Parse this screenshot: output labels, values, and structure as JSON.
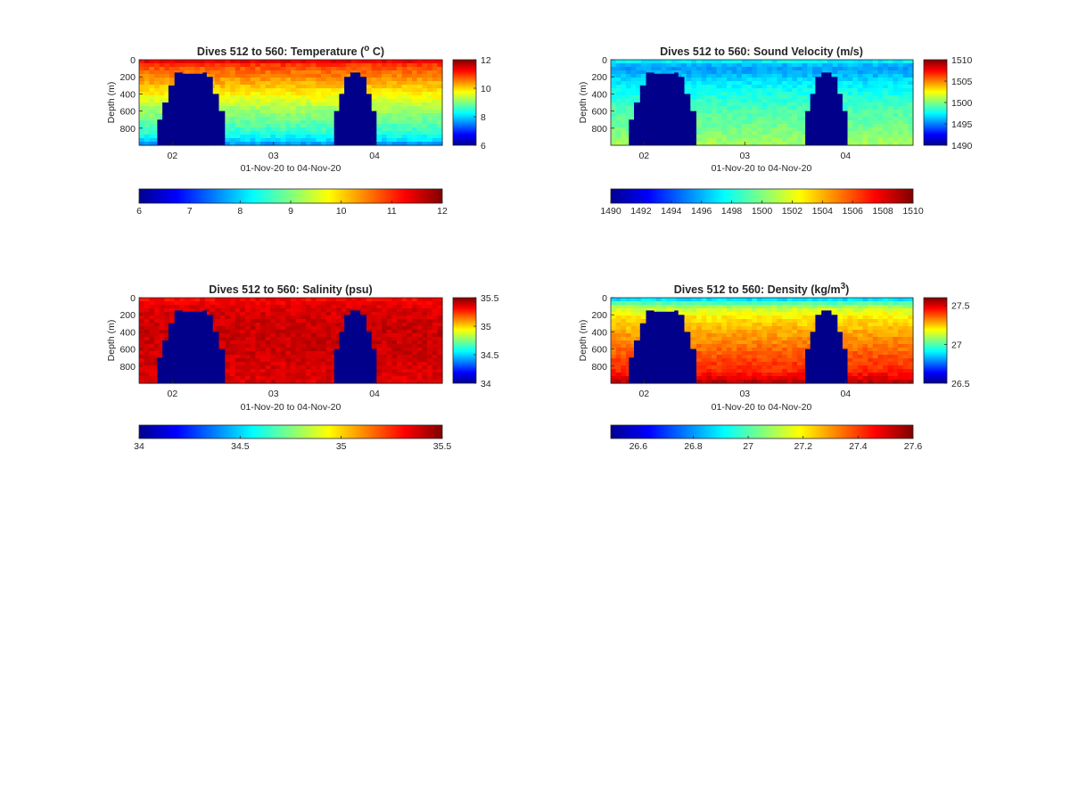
{
  "figure": {
    "colormap": "jet",
    "colormap_stops": [
      "#00008f",
      "#0000ff",
      "#0080ff",
      "#00ffff",
      "#80ff80",
      "#ffff00",
      "#ff8000",
      "#ff0000",
      "#800000"
    ],
    "background_fill": "#00008b"
  },
  "chart_data": [
    {
      "type": "heatmap",
      "title": "Dives 512 to 560: Temperature (",
      "title_sup": "o",
      "title_end": " C)",
      "xlabel": "01-Nov-20 to 04-Nov-20",
      "ylabel": "Depth (m)",
      "x_ticks": [
        "02",
        "03",
        "04"
      ],
      "x_tick_days": [
        2,
        3,
        4
      ],
      "xlim_days": [
        1.67,
        4.67
      ],
      "y_ticks": [
        "0",
        "200",
        "400",
        "600",
        "800"
      ],
      "y_tick_values": [
        0,
        200,
        400,
        600,
        800
      ],
      "ylim": [
        0,
        1000
      ],
      "y_reversed": true,
      "clim": [
        6,
        12
      ],
      "colorbar_ticks": [
        "6",
        "8",
        "10",
        "12"
      ],
      "colorbar_tick_values": [
        6,
        8,
        10,
        12
      ],
      "h_colorbar_ticks": [
        "6",
        "7",
        "8",
        "9",
        "10",
        "11",
        "12"
      ],
      "h_colorbar_tick_values": [
        6,
        7,
        8,
        9,
        10,
        11,
        12
      ],
      "profile_depths": [
        0,
        30,
        80,
        150,
        250,
        400,
        550,
        700,
        850,
        950,
        1000
      ],
      "profile_values": [
        11.6,
        11.2,
        10.8,
        10.6,
        10.3,
        9.8,
        9.3,
        8.9,
        8.5,
        8.0,
        7.5
      ]
    },
    {
      "type": "heatmap",
      "title": "Dives 512 to 560: Sound Velocity (m/s)",
      "xlabel": "01-Nov-20 to 04-Nov-20",
      "ylabel": "Depth (m)",
      "x_ticks": [
        "02",
        "03",
        "04"
      ],
      "x_tick_days": [
        2,
        3,
        4
      ],
      "xlim_days": [
        1.67,
        4.67
      ],
      "y_ticks": [
        "0",
        "200",
        "400",
        "600",
        "800"
      ],
      "y_tick_values": [
        0,
        200,
        400,
        600,
        800
      ],
      "ylim": [
        0,
        1000
      ],
      "y_reversed": true,
      "clim": [
        1490,
        1510
      ],
      "colorbar_ticks": [
        "1490",
        "1495",
        "1500",
        "1505",
        "1510"
      ],
      "colorbar_tick_values": [
        1490,
        1495,
        1500,
        1505,
        1510
      ],
      "h_colorbar_ticks": [
        "1490",
        "1492",
        "1494",
        "1496",
        "1498",
        "1500",
        "1502",
        "1504",
        "1506",
        "1508",
        "1510"
      ],
      "h_colorbar_tick_values": [
        1490,
        1492,
        1494,
        1496,
        1498,
        1500,
        1502,
        1504,
        1506,
        1508,
        1510
      ],
      "profile_depths": [
        0,
        30,
        80,
        150,
        250,
        400,
        550,
        700,
        850,
        950,
        1000
      ],
      "profile_values": [
        1497.5,
        1497.2,
        1495.5,
        1495.8,
        1497.0,
        1498.0,
        1498.8,
        1499.4,
        1500.0,
        1500.5,
        1500.8
      ]
    },
    {
      "type": "heatmap",
      "title": "Dives 512 to 560: Salinity (psu)",
      "xlabel": "01-Nov-20 to 04-Nov-20",
      "ylabel": "Depth (m)",
      "x_ticks": [
        "02",
        "03",
        "04"
      ],
      "x_tick_days": [
        2,
        3,
        4
      ],
      "xlim_days": [
        1.67,
        4.67
      ],
      "y_ticks": [
        "0",
        "200",
        "400",
        "600",
        "800"
      ],
      "y_tick_values": [
        0,
        200,
        400,
        600,
        800
      ],
      "ylim": [
        0,
        1000
      ],
      "y_reversed": true,
      "clim": [
        34,
        35.5
      ],
      "colorbar_ticks": [
        "34",
        "34.5",
        "35",
        "35.5"
      ],
      "colorbar_tick_values": [
        34,
        34.5,
        35,
        35.5
      ],
      "h_colorbar_ticks": [
        "34",
        "34.5",
        "35",
        "35.5"
      ],
      "h_colorbar_tick_values": [
        34,
        34.5,
        35,
        35.5
      ],
      "profile_depths": [
        0,
        30,
        80,
        150,
        250,
        400,
        550,
        700,
        850,
        950,
        1000
      ],
      "profile_values": [
        35.3,
        35.32,
        35.35,
        35.37,
        35.38,
        35.39,
        35.39,
        35.38,
        35.37,
        35.36,
        35.35
      ]
    },
    {
      "type": "heatmap",
      "title": "Dives 512 to 560: Density (kg/m",
      "title_sup": "3",
      "title_end": ")",
      "xlabel": "01-Nov-20 to 04-Nov-20",
      "ylabel": "Depth (m)",
      "x_ticks": [
        "02",
        "03",
        "04"
      ],
      "x_tick_days": [
        2,
        3,
        4
      ],
      "xlim_days": [
        1.67,
        4.67
      ],
      "y_ticks": [
        "0",
        "200",
        "400",
        "600",
        "800"
      ],
      "y_tick_values": [
        0,
        200,
        400,
        600,
        800
      ],
      "ylim": [
        0,
        1000
      ],
      "y_reversed": true,
      "clim": [
        26.5,
        27.6
      ],
      "colorbar_ticks": [
        "26.5",
        "27",
        "27.5"
      ],
      "colorbar_tick_values": [
        26.5,
        27,
        27.5
      ],
      "h_colorbar_ticks": [
        "26.6",
        "26.8",
        "27",
        "27.2",
        "27.4",
        "27.6"
      ],
      "h_colorbar_tick_values": [
        26.6,
        26.8,
        27,
        27.2,
        27.4,
        27.6
      ],
      "profile_depths": [
        0,
        30,
        80,
        150,
        250,
        400,
        550,
        700,
        850,
        950,
        1000
      ],
      "profile_values": [
        26.85,
        26.9,
        27.05,
        27.15,
        27.22,
        27.28,
        27.33,
        27.38,
        27.42,
        27.5,
        27.55
      ]
    }
  ],
  "no_data_regions": {
    "depth_levels": [
      960,
      900,
      800,
      700,
      600,
      500,
      400,
      300,
      200,
      150
    ],
    "blob_a": {
      "day_start": [
        1.85,
        1.85,
        1.85,
        1.85,
        1.85,
        1.85,
        1.85,
        1.85,
        1.85,
        1.85
      ],
      "day_left": [
        1.85,
        1.85,
        1.85,
        1.9,
        1.9,
        1.96,
        1.96,
        2.02,
        2.02,
        2.1
      ],
      "day_right": [
        2.52,
        2.52,
        2.52,
        2.52,
        2.46,
        2.46,
        2.4,
        2.4,
        2.34,
        2.3
      ],
      "top_depth": 165
    },
    "blob_b": {
      "day_left": [
        3.6,
        3.6,
        3.6,
        3.6,
        3.65,
        3.65,
        3.7,
        3.7,
        3.76,
        3.76
      ],
      "day_right": [
        4.02,
        4.02,
        4.02,
        4.02,
        3.97,
        3.97,
        3.92,
        3.92,
        3.86,
        3.86
      ],
      "top_depth": 150
    }
  }
}
